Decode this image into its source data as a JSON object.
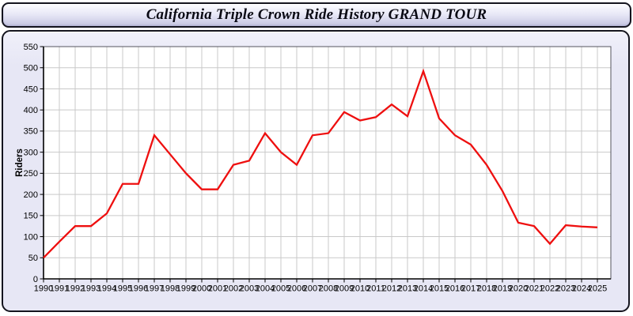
{
  "header": {
    "title": "California Triple Crown Ride History GRAND TOUR"
  },
  "chart_data": {
    "type": "line",
    "title": "California Triple Crown Ride History GRAND TOUR",
    "ylabel": "Riders",
    "xlabel": "",
    "x": [
      1990,
      1991,
      1992,
      1993,
      1994,
      1995,
      1996,
      1997,
      1998,
      1999,
      2000,
      2001,
      2002,
      2003,
      2004,
      2005,
      2006,
      2007,
      2008,
      2009,
      2010,
      2011,
      2012,
      2013,
      2014,
      2015,
      2016,
      2017,
      2018,
      2019,
      2020,
      2021,
      2022,
      2023,
      2024,
      2025
    ],
    "series": [
      {
        "name": "Riders",
        "color": "#ee0f0f",
        "values": [
          50,
          88,
          125,
          125,
          155,
          225,
          225,
          340,
          295,
          250,
          212,
          212,
          270,
          280,
          345,
          300,
          270,
          340,
          345,
          395,
          375,
          383,
          413,
          385,
          492,
          380,
          340,
          318,
          270,
          208,
          133,
          125,
          83,
          127,
          124,
          122
        ]
      }
    ],
    "ylim": [
      0,
      550
    ],
    "ytick_step": 50,
    "grid": true,
    "legend": "none",
    "plot_bg": "#ffffff",
    "grid_color": "#c9c9c9",
    "axis_color": "#000000",
    "frame_color": "#55555f",
    "panel_bg": "#e7e7f5",
    "tick_label_color": "#000000"
  }
}
